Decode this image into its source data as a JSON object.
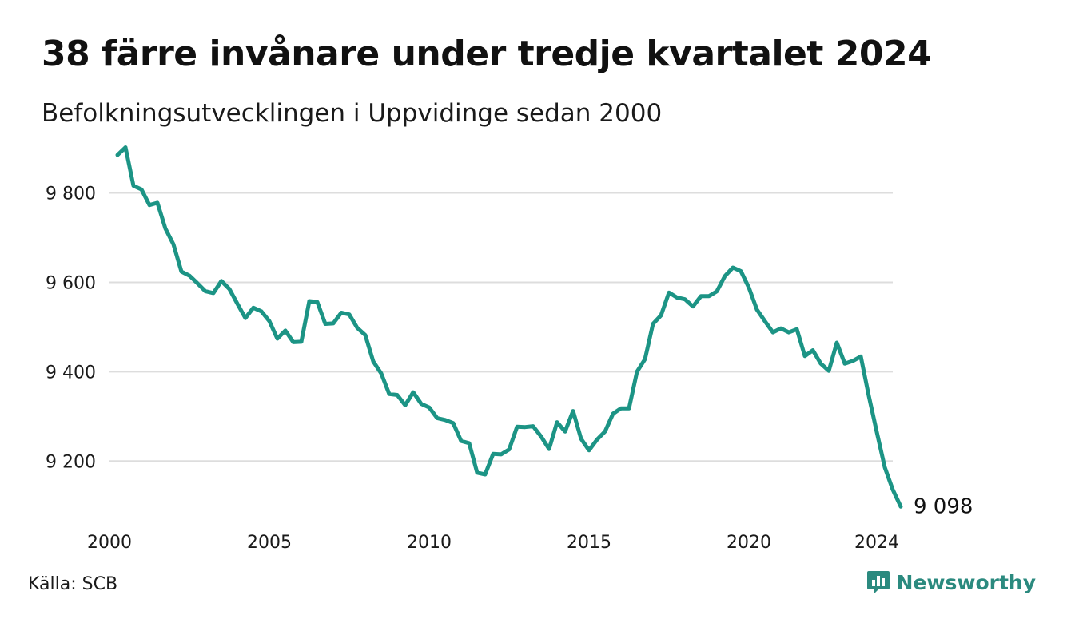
{
  "header": {
    "title": "38 färre invånare under tredje kvartalet 2024",
    "subtitle": "Befolkningsutvecklingen i Uppvidinge sedan 2000"
  },
  "footer": {
    "source": "Källa: SCB",
    "brand": "Newsworthy"
  },
  "colors": {
    "line": "#1c9485",
    "grid": "#dddddd",
    "brand": "#2b8a7f"
  },
  "icons": {
    "brand_logo": "bar-chart-speech-bubble-icon"
  },
  "chart_data": {
    "type": "line",
    "title": "38 färre invånare under tredje kvartalet 2024",
    "subtitle": "Befolkningsutvecklingen i Uppvidinge sedan 2000",
    "x_ticks": [
      2000,
      2005,
      2010,
      2015,
      2020,
      2024
    ],
    "x_tick_labels": [
      "2000",
      "2005",
      "2010",
      "2015",
      "2020",
      "2024"
    ],
    "y_ticks": [
      9200,
      9400,
      9600,
      9800
    ],
    "y_tick_labels": [
      "9 200",
      "9 400",
      "9 600",
      "9 800"
    ],
    "xlim": [
      2000,
      2024.5
    ],
    "ylim": [
      9070,
      9910
    ],
    "grid": true,
    "legend": "none",
    "end_label": "9 098",
    "series": [
      {
        "x": [
          2000.25,
          2000.5,
          2000.75,
          2001,
          2001.25,
          2001.5,
          2001.75,
          2002,
          2002.25,
          2002.5,
          2002.75,
          2003,
          2003.25,
          2003.5,
          2003.75,
          2004,
          2004.25,
          2004.5,
          2004.75,
          2005,
          2005.25,
          2005.5,
          2005.75,
          2006,
          2006.25,
          2006.5,
          2006.75,
          2007,
          2007.25,
          2007.5,
          2007.75,
          2008,
          2008.25,
          2008.5,
          2008.75,
          2009,
          2009.25,
          2009.5,
          2009.75,
          2010,
          2010.25,
          2010.5,
          2010.75,
          2011,
          2011.25,
          2011.5,
          2011.75,
          2012,
          2012.25,
          2012.5,
          2012.75,
          2013,
          2013.25,
          2013.5,
          2013.75,
          2014,
          2014.25,
          2014.5,
          2014.75,
          2015,
          2015.25,
          2015.5,
          2015.75,
          2016,
          2016.25,
          2016.5,
          2016.75,
          2017,
          2017.25,
          2017.5,
          2017.75,
          2018,
          2018.25,
          2018.5,
          2018.75,
          2019,
          2019.25,
          2019.5,
          2019.75,
          2020,
          2020.25,
          2020.5,
          2020.75,
          2021,
          2021.25,
          2021.5,
          2021.75,
          2022,
          2022.25,
          2022.5,
          2022.75,
          2023,
          2023.25,
          2023.5,
          2023.75,
          2024,
          2024.25,
          2024.5,
          2024.75
        ],
        "y": [
          9885,
          9902,
          9816,
          9808,
          9773,
          9778,
          9720,
          9685,
          9624,
          9615,
          9598,
          9580,
          9576,
          9603,
          9585,
          9552,
          9520,
          9543,
          9535,
          9513,
          9474,
          9492,
          9466,
          9467,
          9558,
          9556,
          9507,
          9508,
          9532,
          9528,
          9498,
          9482,
          9423,
          9396,
          9350,
          9348,
          9325,
          9354,
          9328,
          9320,
          9296,
          9292,
          9285,
          9245,
          9240,
          9174,
          9170,
          9216,
          9215,
          9226,
          9277,
          9276,
          9278,
          9255,
          9227,
          9287,
          9266,
          9312,
          9250,
          9224,
          9248,
          9266,
          9306,
          9318,
          9318,
          9400,
          9428,
          9507,
          9526,
          9577,
          9566,
          9562,
          9546,
          9569,
          9569,
          9580,
          9614,
          9633,
          9625,
          9588,
          9539,
          9513,
          9488,
          9497,
          9488,
          9495,
          9435,
          9448,
          9418,
          9402,
          9465,
          9418,
          9424,
          9434,
          9346,
          9265,
          9186,
          9136,
          9098
        ]
      }
    ]
  }
}
